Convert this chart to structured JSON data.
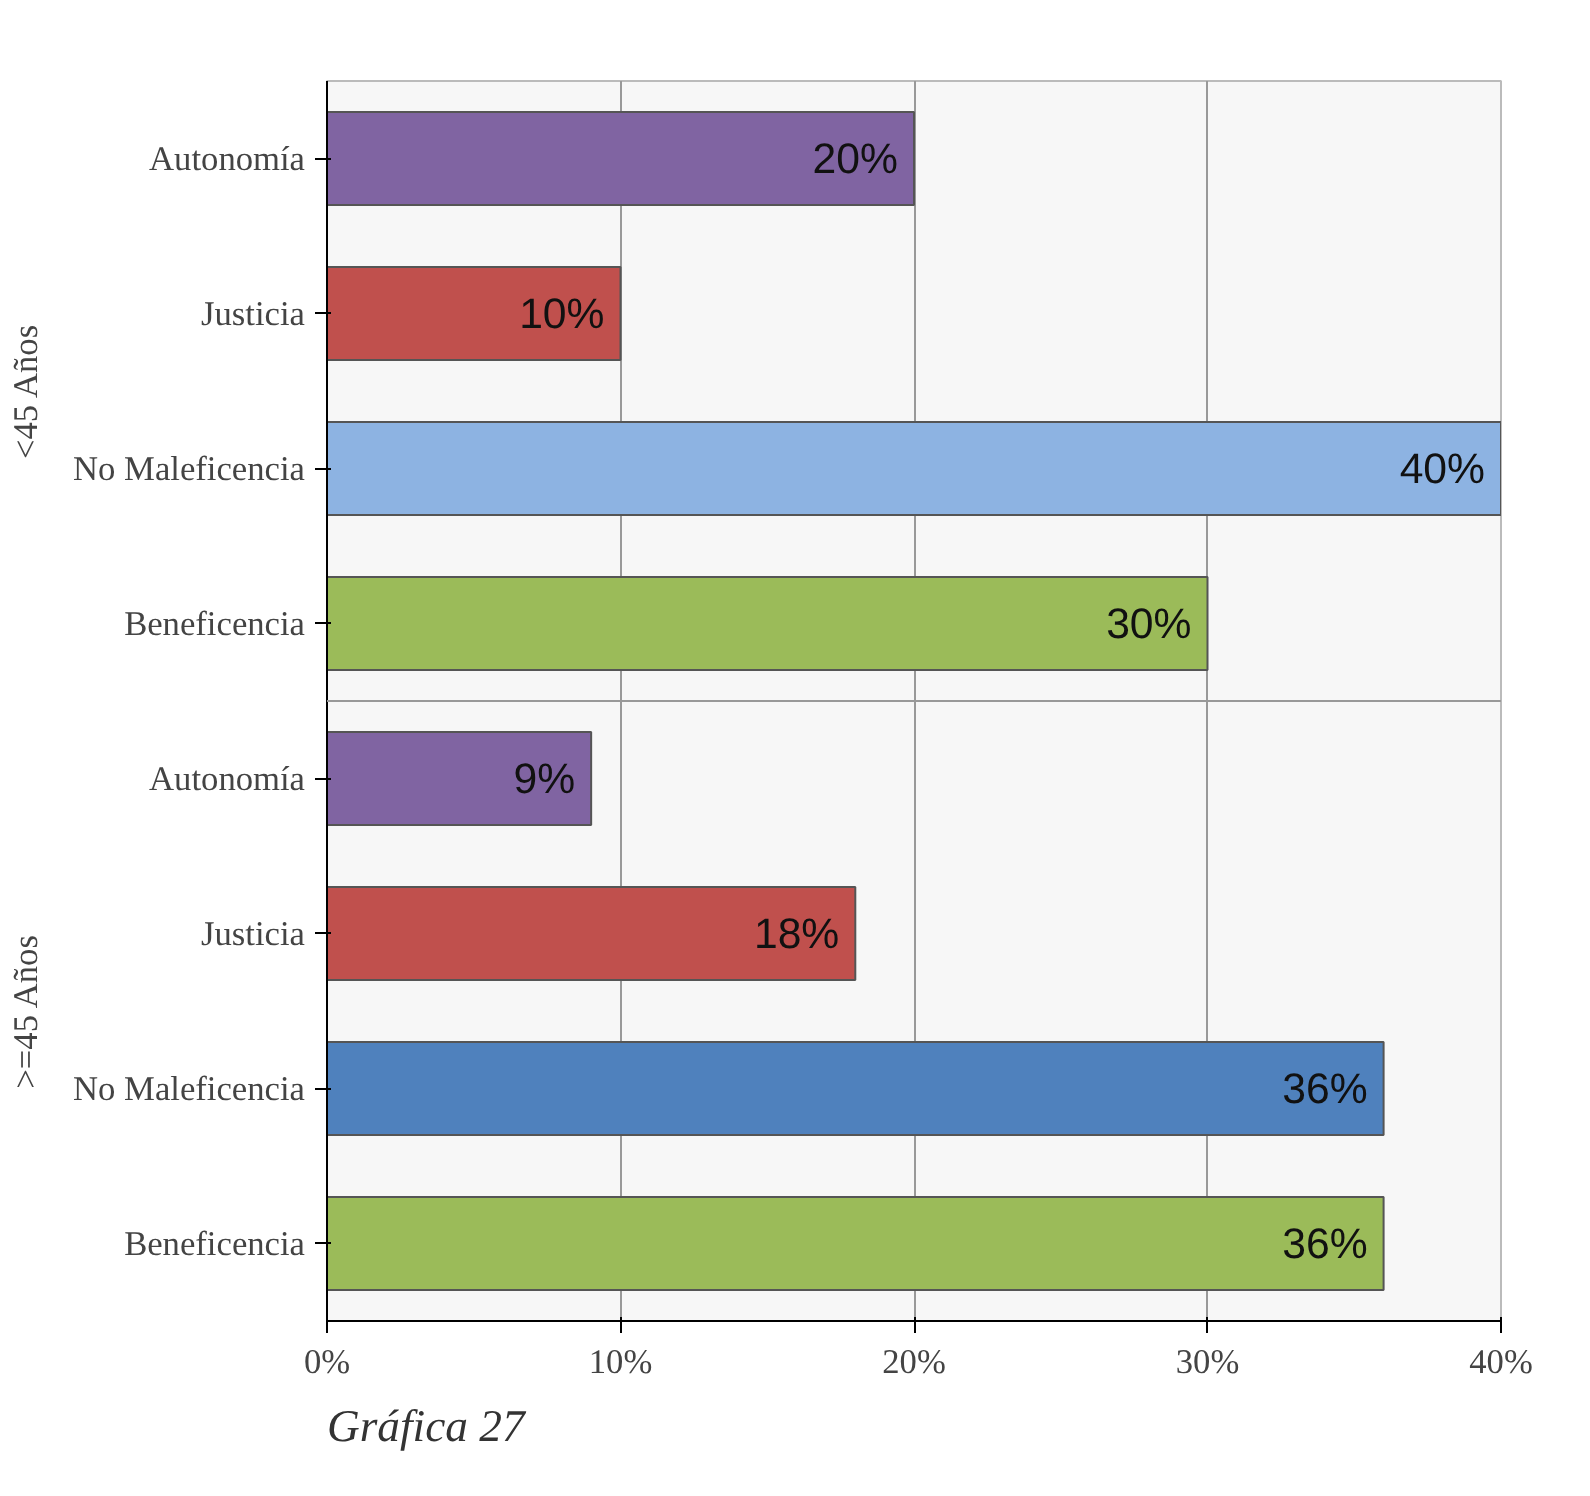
{
  "chart_data": {
    "type": "bar",
    "orientation": "horizontal",
    "categories": [
      "Autonomía",
      "Justicia",
      "No Maleficencia",
      "Beneficencia",
      "Autonomía",
      "Justicia",
      "No Maleficencia",
      "Beneficencia"
    ],
    "values": [
      20,
      10,
      40,
      30,
      9,
      18,
      36,
      36
    ],
    "colors": [
      "#8064a2",
      "#c0504d",
      "#8db3e2",
      "#9bbb59",
      "#8064a2",
      "#c0504d",
      "#4f81bd",
      "#9bbb59"
    ],
    "value_labels": [
      "20%",
      "10%",
      "40%",
      "30%",
      "9%",
      "18%",
      "36%",
      "36%"
    ],
    "xlim": [
      0,
      40
    ],
    "xticks": [
      {
        "value": 0,
        "label": "0%"
      },
      {
        "value": 10,
        "label": "10%"
      },
      {
        "value": 20,
        "label": "20%"
      },
      {
        "value": 30,
        "label": "30%"
      },
      {
        "value": 40,
        "label": "40%"
      }
    ],
    "grid": "x",
    "annotations": [
      "<45 Años",
      ">=45 Años",
      "Gráfica 27"
    ]
  }
}
